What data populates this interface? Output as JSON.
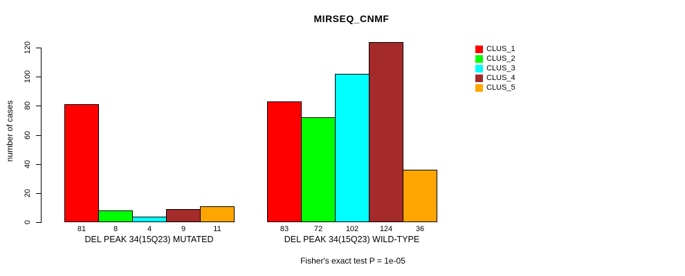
{
  "title": "MIRSEQ_CNMF",
  "y_axis": {
    "label": "number of cases",
    "ticks": [
      0,
      20,
      40,
      60,
      80,
      100,
      120
    ]
  },
  "footer": "Fisher's exact test P = 1e-05",
  "legend": {
    "items": [
      {
        "label": "CLUS_1",
        "color": "#ff0000"
      },
      {
        "label": "CLUS_2",
        "color": "#00ff00"
      },
      {
        "label": "CLUS_3",
        "color": "#00ffff"
      },
      {
        "label": "CLUS_4",
        "color": "#a52a2a"
      },
      {
        "label": "CLUS_5",
        "color": "#ffa500"
      }
    ]
  },
  "chart_data": {
    "type": "bar",
    "title": "MIRSEQ_CNMF",
    "xlabel": "",
    "ylabel": "number of cases",
    "ylim": [
      0,
      124
    ],
    "yticks": [
      0,
      20,
      40,
      60,
      80,
      100,
      120
    ],
    "grid": false,
    "legend_position": "right",
    "categories": [
      "DEL PEAK 34(15Q23) MUTATED",
      "DEL PEAK 34(15Q23) WILD-TYPE"
    ],
    "series": [
      {
        "name": "CLUS_1",
        "color": "#ff0000",
        "values": [
          81,
          83
        ]
      },
      {
        "name": "CLUS_2",
        "color": "#00ff00",
        "values": [
          8,
          72
        ]
      },
      {
        "name": "CLUS_3",
        "color": "#00ffff",
        "values": [
          4,
          102
        ]
      },
      {
        "name": "CLUS_4",
        "color": "#a52a2a",
        "values": [
          9,
          124
        ]
      },
      {
        "name": "CLUS_5",
        "color": "#ffa500",
        "values": [
          11,
          36
        ]
      }
    ],
    "bar_value_labels": [
      [
        81,
        8,
        4,
        9,
        11
      ],
      [
        83,
        72,
        102,
        124,
        36
      ]
    ],
    "annotation": "Fisher's exact test P = 1e-05"
  }
}
